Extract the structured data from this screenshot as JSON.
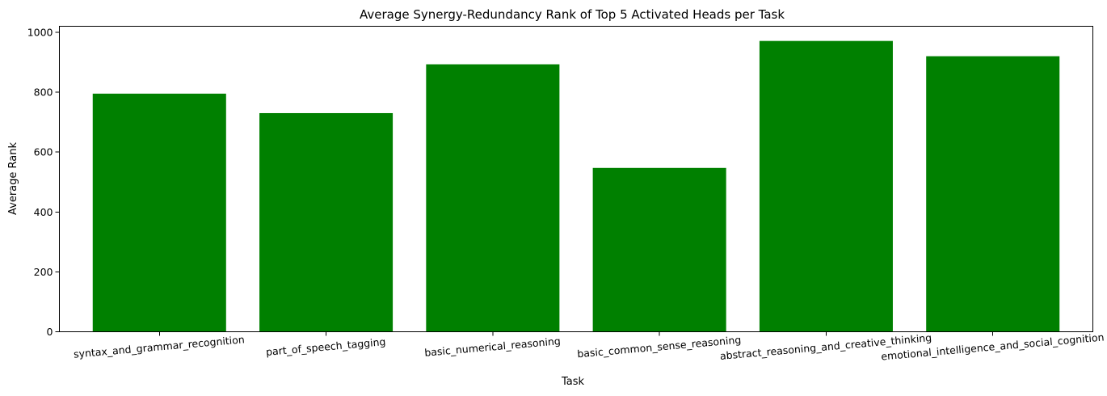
{
  "chart_data": {
    "type": "bar",
    "title": "Average Synergy-Redundancy Rank of Top 5 Activated Heads per Task",
    "xlabel": "Task",
    "ylabel": "Average Rank",
    "categories": [
      "syntax_and_grammar_recognition",
      "part_of_speech_tagging",
      "basic_numerical_reasoning",
      "basic_common_sense_reasoning",
      "abstract_reasoning_and_creative_thinking",
      "emotional_intelligence_and_social_cognition"
    ],
    "values": [
      795,
      730,
      893,
      547,
      971,
      920
    ],
    "ylim": [
      0,
      1020
    ],
    "yticks": [
      0,
      200,
      400,
      600,
      800,
      1000
    ],
    "bar_color": "#008000",
    "grid": false,
    "legend": "none"
  }
}
